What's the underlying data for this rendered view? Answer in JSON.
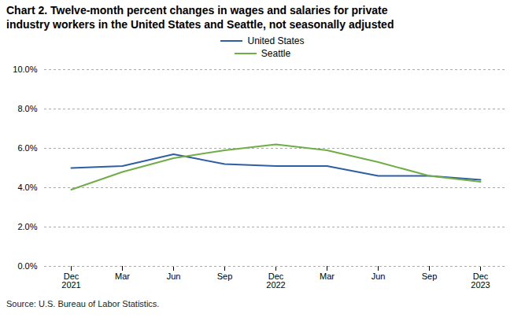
{
  "chart_data": {
    "type": "line",
    "title": "Chart 2. Twelve-month percent changes in wages and salaries for private\nindustry workers in the United States and Seattle, not seasonally adjusted",
    "source": "Source: U.S. Bureau of Labor Statistics.",
    "categories": [
      "Dec\n2021",
      "Mar",
      "Jun",
      "Sep",
      "Dec\n2022",
      "Mar",
      "Jun",
      "Sep",
      "Dec\n2023"
    ],
    "series": [
      {
        "name": "United States",
        "color": "#2e5fa3",
        "values": [
          5.0,
          5.1,
          5.7,
          5.2,
          5.1,
          5.1,
          4.6,
          4.6,
          4.4
        ]
      },
      {
        "name": "Seattle",
        "color": "#70ad47",
        "values": [
          3.9,
          4.8,
          5.5,
          5.9,
          6.2,
          5.9,
          5.3,
          4.6,
          4.3
        ]
      }
    ],
    "ylim": [
      0.0,
      10.0
    ],
    "yticks": [
      {
        "value": 0.0,
        "label": "0.0%"
      },
      {
        "value": 2.0,
        "label": "2.0%"
      },
      {
        "value": 4.0,
        "label": "4.0%"
      },
      {
        "value": 6.0,
        "label": "6.0%"
      },
      {
        "value": 8.0,
        "label": "8.0%"
      },
      {
        "value": 10.0,
        "label": "10.0%"
      }
    ],
    "grid": true,
    "legend": "top"
  }
}
